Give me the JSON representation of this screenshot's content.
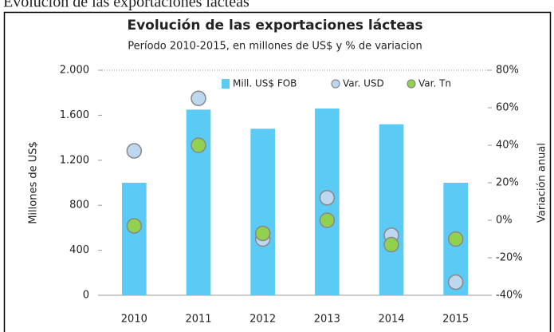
{
  "page_title": "Evolución de las exportaciones lácteas",
  "chart_data": {
    "type": "bar",
    "title": "Evolución de las exportaciones lácteas",
    "subtitle": "Período 2010-2015, en millones de US$ y % de variacion",
    "y_label": "Millones de US$",
    "y2_label": "Variación anual",
    "categories": [
      "2010",
      "2011",
      "2012",
      "2013",
      "2014",
      "2015"
    ],
    "series": [
      {
        "name": "Mill. US$ FOB",
        "type": "bar",
        "color": "#5bcbf5",
        "values": [
          1000,
          1650,
          1480,
          1660,
          1520,
          1000
        ]
      },
      {
        "name": "Var. USD",
        "type": "scatter",
        "axis": "y2",
        "color": "#bdd7ee",
        "values": [
          37,
          65,
          -10,
          12,
          -8,
          -33
        ]
      },
      {
        "name": "Var. Tn",
        "type": "scatter",
        "axis": "y2",
        "color": "#92d050",
        "values": [
          -3,
          40,
          -7,
          0,
          -13,
          -10
        ]
      }
    ],
    "ylim": [
      0,
      2000
    ],
    "yticks": [
      {
        "value": 2000,
        "label": "2.000"
      },
      {
        "value": 1600,
        "label": "1.600"
      },
      {
        "value": 1200,
        "label": "1.200"
      },
      800,
      400,
      0
    ],
    "y2lim": [
      -40,
      80
    ],
    "y2ticks": [
      {
        "value": 80,
        "label": "80%"
      },
      {
        "value": 60,
        "label": "60%"
      },
      {
        "value": 40,
        "label": "40%"
      },
      {
        "value": 20,
        "label": "20%"
      },
      {
        "value": 0,
        "label": "0%"
      },
      {
        "value": -20,
        "label": "-20%"
      },
      {
        "value": -40,
        "label": "-40%"
      }
    ],
    "legend": "top"
  }
}
